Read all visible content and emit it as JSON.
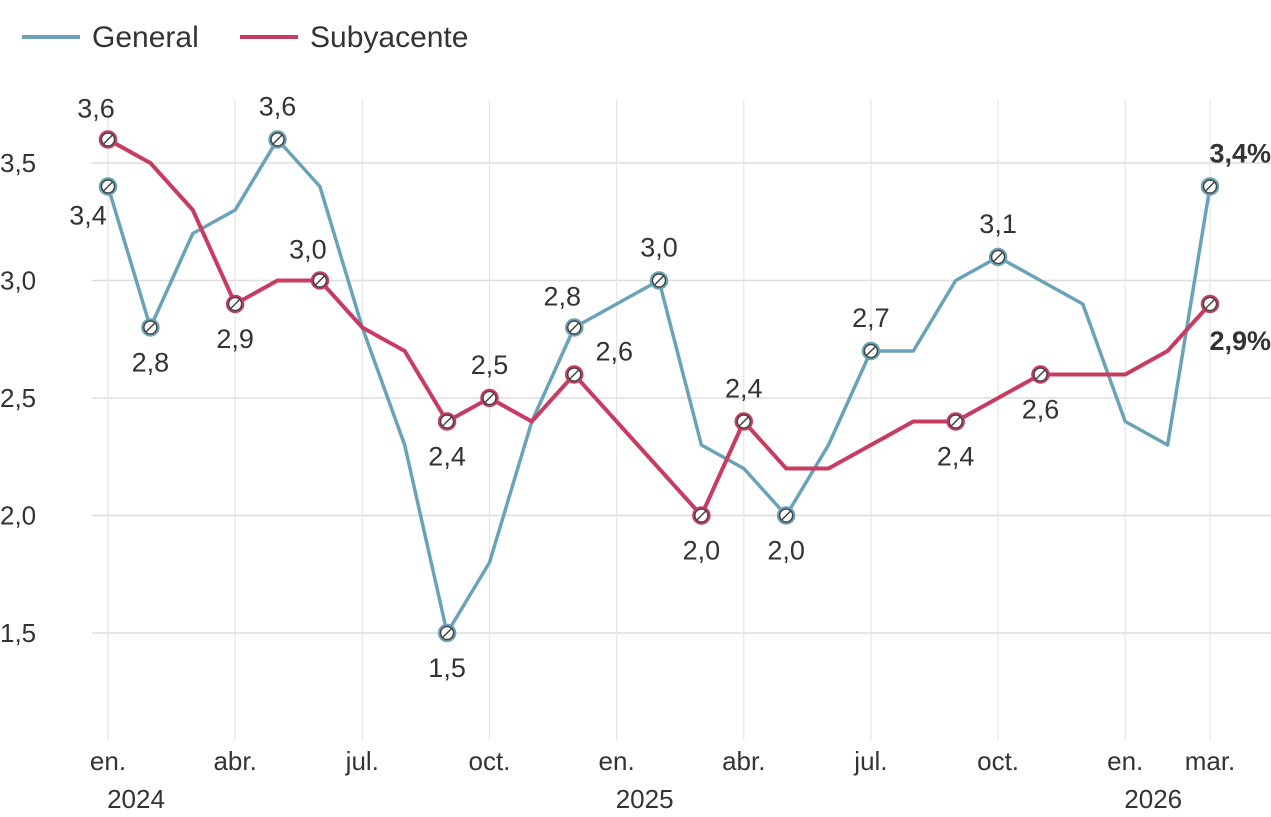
{
  "chart_data": {
    "type": "line",
    "title": "",
    "xlabel": "",
    "ylabel": "",
    "ylim": [
      1.0,
      3.8
    ],
    "yticks": [
      "1,5",
      "2,0",
      "2,5",
      "3,0",
      "3,5"
    ],
    "ytick_values": [
      1.5,
      2.0,
      2.5,
      3.0,
      3.5
    ],
    "grid": "horizontal and vertical",
    "legend": "top-left",
    "x": [
      "2024-01",
      "2024-02",
      "2024-03",
      "2024-04",
      "2024-05",
      "2024-06",
      "2024-07",
      "2024-08",
      "2024-09",
      "2024-10",
      "2024-11",
      "2024-12",
      "2025-01",
      "2025-02",
      "2025-03",
      "2025-04",
      "2025-05",
      "2025-06",
      "2025-07",
      "2025-08",
      "2025-09",
      "2025-10",
      "2025-11",
      "2025-12",
      "2026-01",
      "2026-02",
      "2026-03"
    ],
    "xticks": [
      {
        "month": "2024-01",
        "line1": "en.",
        "line2": "2024"
      },
      {
        "month": "2024-04",
        "line1": "abr.",
        "line2": ""
      },
      {
        "month": "2024-07",
        "line1": "jul.",
        "line2": ""
      },
      {
        "month": "2024-10",
        "line1": "oct.",
        "line2": ""
      },
      {
        "month": "2025-01",
        "line1": "en.",
        "line2": "2025"
      },
      {
        "month": "2025-04",
        "line1": "abr.",
        "line2": ""
      },
      {
        "month": "2025-07",
        "line1": "jul.",
        "line2": ""
      },
      {
        "month": "2025-10",
        "line1": "oct.",
        "line2": ""
      },
      {
        "month": "2026-01",
        "line1": "en.",
        "line2": "2026"
      },
      {
        "month": "2026-03",
        "line1": "mar.",
        "line2": ""
      }
    ],
    "series": [
      {
        "name": "General",
        "color": "#6aa3b8",
        "values": [
          3.4,
          2.8,
          3.2,
          3.3,
          3.6,
          3.4,
          2.8,
          2.3,
          1.5,
          1.8,
          2.4,
          2.8,
          2.9,
          3.0,
          2.3,
          2.2,
          2.0,
          2.3,
          2.7,
          2.7,
          3.0,
          3.1,
          3.0,
          2.9,
          2.4,
          2.3,
          3.4
        ],
        "labels": [
          {
            "index": 0,
            "text": "3,4",
            "pos": "left"
          },
          {
            "index": 1,
            "text": "2,8",
            "pos": "below"
          },
          {
            "index": 4,
            "text": "3,6",
            "pos": "above"
          },
          {
            "index": 8,
            "text": "1,5",
            "pos": "below"
          },
          {
            "index": 11,
            "text": "2,8",
            "pos": "above-left"
          },
          {
            "index": 13,
            "text": "3,0",
            "pos": "above"
          },
          {
            "index": 16,
            "text": "2,0",
            "pos": "below"
          },
          {
            "index": 18,
            "text": "2,7",
            "pos": "above"
          },
          {
            "index": 21,
            "text": "3,1",
            "pos": "above"
          },
          {
            "index": 26,
            "text": "3,4%",
            "pos": "above",
            "bold": true
          }
        ]
      },
      {
        "name": "Subyacente",
        "color": "#c83c61",
        "values": [
          3.6,
          3.5,
          3.3,
          2.9,
          3.0,
          3.0,
          2.8,
          2.7,
          2.4,
          2.5,
          2.4,
          2.6,
          2.4,
          2.2,
          2.0,
          2.4,
          2.2,
          2.2,
          2.3,
          2.4,
          2.4,
          2.5,
          2.6,
          2.6,
          2.6,
          2.7,
          2.9
        ],
        "labels": [
          {
            "index": 0,
            "text": "3,6",
            "pos": "above-left"
          },
          {
            "index": 3,
            "text": "2,9",
            "pos": "below"
          },
          {
            "index": 5,
            "text": "3,0",
            "pos": "above-left"
          },
          {
            "index": 8,
            "text": "2,4",
            "pos": "below"
          },
          {
            "index": 9,
            "text": "2,5",
            "pos": "above"
          },
          {
            "index": 11,
            "text": "2,6",
            "pos": "right"
          },
          {
            "index": 14,
            "text": "2,0",
            "pos": "below"
          },
          {
            "index": 15,
            "text": "2,4",
            "pos": "above"
          },
          {
            "index": 20,
            "text": "2,4",
            "pos": "below"
          },
          {
            "index": 22,
            "text": "2,6",
            "pos": "below"
          },
          {
            "index": 26,
            "text": "2,9%",
            "pos": "below-right",
            "bold": true
          }
        ]
      }
    ],
    "markers": [
      {
        "series": 0,
        "index": 0
      },
      {
        "series": 0,
        "index": 1
      },
      {
        "series": 0,
        "index": 4
      },
      {
        "series": 0,
        "index": 8
      },
      {
        "series": 0,
        "index": 11
      },
      {
        "series": 0,
        "index": 13
      },
      {
        "series": 0,
        "index": 16
      },
      {
        "series": 0,
        "index": 18
      },
      {
        "series": 0,
        "index": 21
      },
      {
        "series": 0,
        "index": 26
      },
      {
        "series": 1,
        "index": 0
      },
      {
        "series": 1,
        "index": 3
      },
      {
        "series": 1,
        "index": 5
      },
      {
        "series": 1,
        "index": 8
      },
      {
        "series": 1,
        "index": 9
      },
      {
        "series": 1,
        "index": 11
      },
      {
        "series": 1,
        "index": 14
      },
      {
        "series": 1,
        "index": 15
      },
      {
        "series": 1,
        "index": 20
      },
      {
        "series": 1,
        "index": 22
      },
      {
        "series": 1,
        "index": 26
      }
    ]
  }
}
